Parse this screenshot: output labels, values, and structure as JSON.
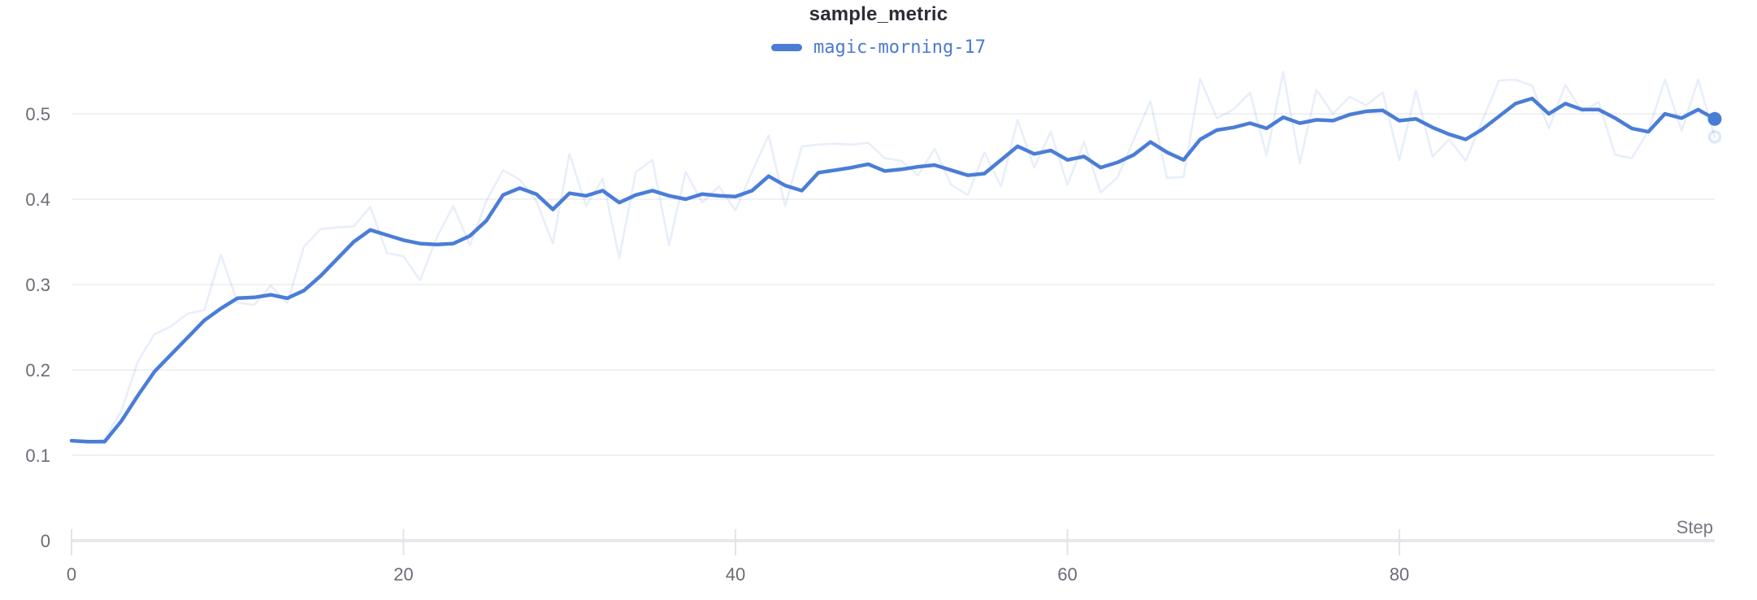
{
  "panel": {
    "title": "sample_metric",
    "x_axis_label": "Step"
  },
  "legend": {
    "run_name": "magic-morning-17",
    "marker_color": "#4a7dd6",
    "text_color": "#4a7ad1"
  },
  "colors": {
    "accent": "#4a7dd6",
    "ghost_opacity": 0.13,
    "gridline": "#f0f1f3",
    "axis_line": "#e7e8eb",
    "tick_mark": "#e3e4e8",
    "tick_label": "#6b6c76",
    "title_text": "#2b2d36",
    "background": "#ffffff"
  },
  "chart_data": {
    "type": "line",
    "title": "sample_metric",
    "xlabel": "Step",
    "ylabel": "",
    "x_range": [
      0,
      99
    ],
    "x_ticks": [
      0,
      20,
      40,
      60,
      80
    ],
    "ylim": [
      0,
      0.55
    ],
    "y_ticks": [
      0,
      0.1,
      0.2,
      0.3,
      0.4,
      0.5
    ],
    "grid": "horizontal",
    "legend_position": "top-center",
    "x": [
      0,
      1,
      2,
      3,
      4,
      5,
      6,
      7,
      8,
      9,
      10,
      11,
      12,
      13,
      14,
      15,
      16,
      17,
      18,
      19,
      20,
      21,
      22,
      23,
      24,
      25,
      26,
      27,
      28,
      29,
      30,
      31,
      32,
      33,
      34,
      35,
      36,
      37,
      38,
      39,
      40,
      41,
      42,
      43,
      44,
      45,
      46,
      47,
      48,
      49,
      50,
      51,
      52,
      53,
      54,
      55,
      56,
      57,
      58,
      59,
      60,
      61,
      62,
      63,
      64,
      65,
      66,
      67,
      68,
      69,
      70,
      71,
      72,
      73,
      74,
      75,
      76,
      77,
      78,
      79,
      80,
      81,
      82,
      83,
      84,
      85,
      86,
      87,
      88,
      89,
      90,
      91,
      92,
      93,
      94,
      95,
      96,
      97,
      98,
      99
    ],
    "series": [
      {
        "name": "magic-morning-17",
        "role": "smoothed",
        "values": [
          0.117,
          0.116,
          0.116,
          0.14,
          0.17,
          0.198,
          0.218,
          0.238,
          0.258,
          0.272,
          0.284,
          0.285,
          0.288,
          0.284,
          0.293,
          0.31,
          0.33,
          0.35,
          0.364,
          0.358,
          0.352,
          0.348,
          0.347,
          0.348,
          0.357,
          0.375,
          0.405,
          0.413,
          0.406,
          0.388,
          0.407,
          0.404,
          0.41,
          0.396,
          0.405,
          0.41,
          0.404,
          0.4,
          0.406,
          0.404,
          0.403,
          0.41,
          0.427,
          0.416,
          0.41,
          0.431,
          0.434,
          0.437,
          0.441,
          0.433,
          0.435,
          0.438,
          0.44,
          0.434,
          0.428,
          0.43,
          0.446,
          0.462,
          0.453,
          0.457,
          0.446,
          0.45,
          0.437,
          0.443,
          0.452,
          0.467,
          0.455,
          0.446,
          0.47,
          0.481,
          0.484,
          0.489,
          0.483,
          0.496,
          0.489,
          0.493,
          0.492,
          0.499,
          0.503,
          0.504,
          0.492,
          0.494,
          0.484,
          0.476,
          0.47,
          0.482,
          0.497,
          0.512,
          0.518,
          0.5,
          0.512,
          0.505,
          0.505,
          0.495,
          0.483,
          0.479,
          0.5,
          0.495,
          0.505,
          0.494
        ]
      },
      {
        "name": "magic-morning-17",
        "role": "original",
        "values": [
          0.118,
          0.115,
          0.119,
          0.152,
          0.21,
          0.242,
          0.251,
          0.266,
          0.27,
          0.335,
          0.279,
          0.276,
          0.299,
          0.278,
          0.344,
          0.365,
          0.367,
          0.368,
          0.391,
          0.337,
          0.333,
          0.305,
          0.355,
          0.392,
          0.346,
          0.398,
          0.434,
          0.423,
          0.398,
          0.348,
          0.453,
          0.392,
          0.424,
          0.331,
          0.432,
          0.446,
          0.346,
          0.432,
          0.396,
          0.415,
          0.387,
          0.432,
          0.475,
          0.392,
          0.462,
          0.464,
          0.465,
          0.464,
          0.466,
          0.448,
          0.445,
          0.428,
          0.459,
          0.417,
          0.405,
          0.455,
          0.415,
          0.493,
          0.437,
          0.479,
          0.417,
          0.467,
          0.408,
          0.425,
          0.47,
          0.515,
          0.425,
          0.426,
          0.541,
          0.495,
          0.505,
          0.525,
          0.451,
          0.549,
          0.442,
          0.528,
          0.5,
          0.52,
          0.51,
          0.525,
          0.446,
          0.527,
          0.45,
          0.47,
          0.445,
          0.492,
          0.539,
          0.54,
          0.533,
          0.483,
          0.534,
          0.502,
          0.514,
          0.452,
          0.448,
          0.48,
          0.54,
          0.48,
          0.54,
          0.473
        ]
      }
    ]
  }
}
